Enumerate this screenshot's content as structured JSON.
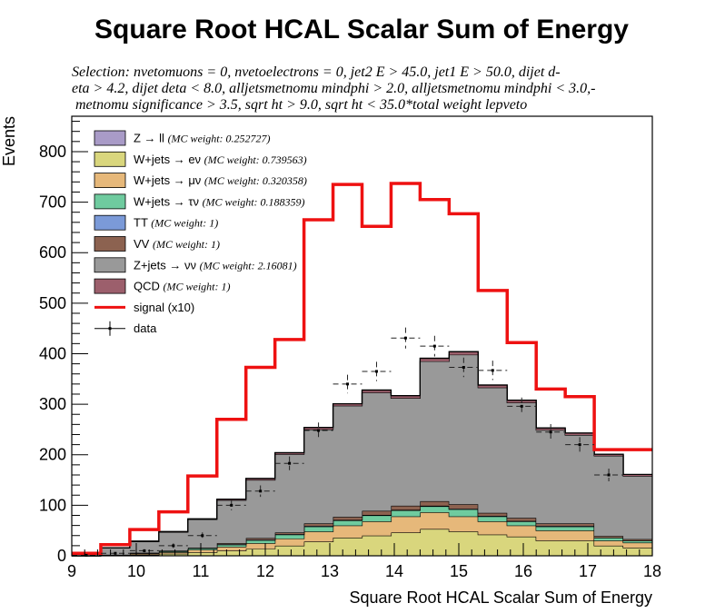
{
  "chart_data": {
    "type": "histogram",
    "title": "Square Root HCAL Scalar Sum of Energy",
    "selection": [
      "Selection: nvetomuons  =  0, nvetoelectrons  =  0, jet2 E > 45.0, jet1 E > 50.0, dijet d-",
      "eta > 4.2, dijet deta < 8.0, alljetsmetnomu mindphi > 2.0, alljetsmetnomu mindphi < 3.0,-",
      " metnomu significance > 3.5, sqrt ht > 9.0, sqrt ht < 35.0*total weight lepveto"
    ],
    "xlabel": "Square Root HCAL Scalar Sum of Energy",
    "ylabel": "Events",
    "xlim": [
      9,
      18
    ],
    "ylim": [
      0,
      870
    ],
    "xticks": [
      "9",
      "10",
      "11",
      "12",
      "13",
      "14",
      "15",
      "16",
      "17",
      "18"
    ],
    "yticks": [
      "0",
      "100",
      "200",
      "300",
      "400",
      "500",
      "600",
      "700",
      "800"
    ],
    "bin_edges": [
      9.0,
      9.45,
      9.9,
      10.35,
      10.8,
      11.25,
      11.7,
      12.15,
      12.6,
      13.05,
      13.5,
      13.95,
      14.4,
      14.85,
      15.3,
      15.75,
      16.2,
      16.65,
      17.1,
      17.55,
      18.0
    ],
    "series": [
      {
        "name": "W+jets → eν",
        "weight": "(MC weight: 0.739563)",
        "color": "#d9d67d",
        "values": [
          0,
          1,
          2,
          4,
          7,
          10,
          14,
          20,
          28,
          36,
          40,
          46,
          53,
          48,
          42,
          38,
          30,
          30,
          20,
          16
        ]
      },
      {
        "name": "W+jets → μν",
        "weight": "(MC weight: 0.320358)",
        "color": "#e6b87a",
        "values": [
          0,
          1,
          2,
          3,
          5,
          8,
          11,
          14,
          20,
          24,
          28,
          32,
          33,
          30,
          26,
          22,
          20,
          20,
          10,
          10
        ]
      },
      {
        "name": "W+jets → τν",
        "weight": "(MC weight: 0.188359)",
        "color": "#6fcb9f",
        "values": [
          0,
          0,
          1,
          2,
          3,
          4,
          6,
          8,
          10,
          10,
          12,
          12,
          12,
          14,
          10,
          8,
          8,
          8,
          6,
          4
        ]
      },
      {
        "name": "TT",
        "weight": "(MC weight: 1)",
        "color": "#7b9ad8",
        "values": [
          0,
          0,
          0,
          0,
          0,
          1,
          1,
          1,
          1,
          1,
          1,
          1,
          1,
          1,
          1,
          1,
          1,
          1,
          0,
          0
        ]
      },
      {
        "name": "VV",
        "weight": "(MC weight: 1)",
        "color": "#8c6250",
        "values": [
          0,
          0,
          1,
          1,
          1,
          2,
          3,
          3,
          5,
          6,
          8,
          8,
          9,
          9,
          6,
          6,
          5,
          5,
          3,
          3
        ]
      },
      {
        "name": "Z+jets → νν",
        "weight": "(MC weight: 2.16081)",
        "color": "#999999",
        "values": [
          5,
          14,
          22,
          37,
          56,
          85,
          115,
          155,
          186,
          220,
          234,
          213,
          277,
          296,
          248,
          228,
          185,
          175,
          159,
          125
        ]
      },
      {
        "name": "QCD",
        "weight": "(MC weight: 1)",
        "color": "#9c5f6c",
        "values": [
          0,
          0,
          1,
          1,
          1,
          2,
          3,
          3,
          4,
          4,
          5,
          5,
          6,
          6,
          5,
          5,
          4,
          4,
          3,
          3
        ]
      },
      {
        "name": "Z → ll",
        "weight": "(MC weight: 0.252727)",
        "color": "#a99bc7",
        "values": [
          0,
          0,
          0,
          0,
          0,
          0,
          0,
          0,
          0,
          0,
          0,
          0,
          0,
          0,
          0,
          0,
          0,
          0,
          0,
          0
        ]
      }
    ],
    "signal": {
      "name": "signal (x10)",
      "color": "#ee1111",
      "values": [
        5,
        22,
        52,
        87,
        158,
        270,
        373,
        428,
        665,
        735,
        652,
        737,
        705,
        677,
        525,
        422,
        330,
        315,
        210,
        210
      ]
    },
    "data": {
      "name": "data",
      "values": [
        1,
        5,
        10,
        20,
        40,
        100,
        128,
        183,
        248,
        340,
        365,
        431,
        415,
        373,
        367,
        296,
        245,
        220,
        160,
        0
      ],
      "errors": [
        1,
        2,
        3,
        4.5,
        6.3,
        10,
        11.3,
        13.5,
        15.7,
        18.4,
        19.1,
        20.8,
        20.4,
        19.3,
        19.2,
        17.2,
        15.7,
        14.8,
        12.6,
        0
      ]
    },
    "legend_order": [
      7,
      0,
      1,
      2,
      3,
      4,
      5,
      6
    ],
    "legend_placement": "top-left",
    "grid": false
  }
}
